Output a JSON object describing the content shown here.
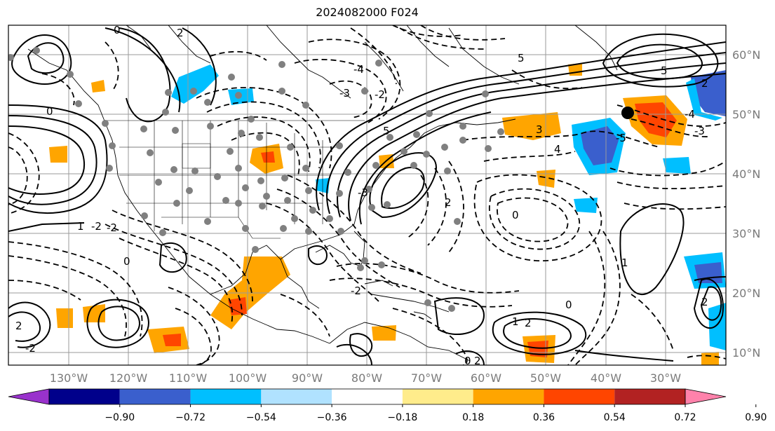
{
  "title": "2024082000 F024",
  "longitude_labels": [
    "130°W",
    "120°W",
    "110°W",
    "100°W",
    "90°W",
    "80°W",
    "70°W",
    "60°W",
    "50°W",
    "40°W",
    "30°W"
  ],
  "latitude_labels": [
    "60°N",
    "50°N",
    "40°N",
    "30°N",
    "20°N",
    "10°N"
  ],
  "colorbar": {
    "ticks": [
      "−0.90",
      "−0.72",
      "−0.54",
      "−0.36",
      "−0.18",
      "0.18",
      "0.36",
      "0.54",
      "0.72",
      "0.90"
    ],
    "colors": [
      "#9932cc",
      "#00008b",
      "#3a5fcd",
      "#00bfff",
      "#b0e2ff",
      "#ffffff",
      "#ffec8b",
      "#ffa500",
      "#ff4500",
      "#b22222",
      "#ff82ab"
    ]
  },
  "contour_labels": [
    "0",
    "2",
    "5",
    "-3",
    "-4",
    "-2",
    "0",
    "1",
    "-2",
    "5",
    "3",
    "4",
    "5",
    "2",
    "-3",
    "-4",
    "-5",
    "-3",
    "0",
    "2",
    "-2",
    "0",
    "1",
    "2",
    "-2",
    "0",
    "1",
    "2",
    "2",
    "-2",
    "0",
    "2"
  ],
  "colors": {
    "line": "#000000",
    "grid": "#9a9a9a",
    "coast": "#000000",
    "station": "#808080",
    "marker": "#000000"
  }
}
